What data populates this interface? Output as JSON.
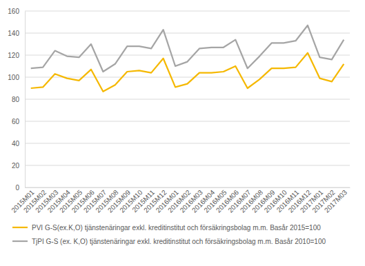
{
  "chart_data": {
    "type": "line",
    "categories": [
      "2015M01",
      "2015M02",
      "2015M03",
      "2015M04",
      "2015M05",
      "2015M06",
      "2015M07",
      "2015M08",
      "2015M09",
      "2015M10",
      "2015M11",
      "2015M12",
      "2016M01",
      "2016M02",
      "2016M03",
      "2016M04",
      "2016M05",
      "2016M06",
      "2016M07",
      "2016M08",
      "2016M09",
      "2016M10",
      "2016M11",
      "2016M12",
      "2017M01",
      "2017M02",
      "2017M03"
    ],
    "series": [
      {
        "name": "PVI G-S(ex.K,O) tjänstenäringar exkl. kreditinstitut och försäkringsbolag m.m. Basår 2015=100",
        "color": "#f5b800",
        "values": [
          90,
          91,
          103,
          99,
          97,
          107,
          87,
          93,
          105,
          106,
          104,
          117,
          91,
          94,
          104,
          104,
          105,
          110,
          90,
          98,
          108,
          108,
          109,
          122,
          99,
          96,
          112
        ]
      },
      {
        "name": "TjPI G-S (ex. K,O) tjänstenäringar exkl. kreditinstitut och försäkringsbolag m.m. Basår 2010=100",
        "color": "#a5a5a5",
        "values": [
          108,
          109,
          124,
          119,
          118,
          130,
          105,
          112,
          128,
          128,
          126,
          143,
          110,
          114,
          126,
          127,
          127,
          134,
          108,
          119,
          131,
          131,
          133,
          147,
          118,
          116,
          134
        ]
      }
    ],
    "ylim": [
      0,
      160
    ],
    "yticks": [
      0,
      20,
      40,
      60,
      80,
      100,
      120,
      140,
      160
    ],
    "grid": true,
    "legend": "bottom"
  }
}
